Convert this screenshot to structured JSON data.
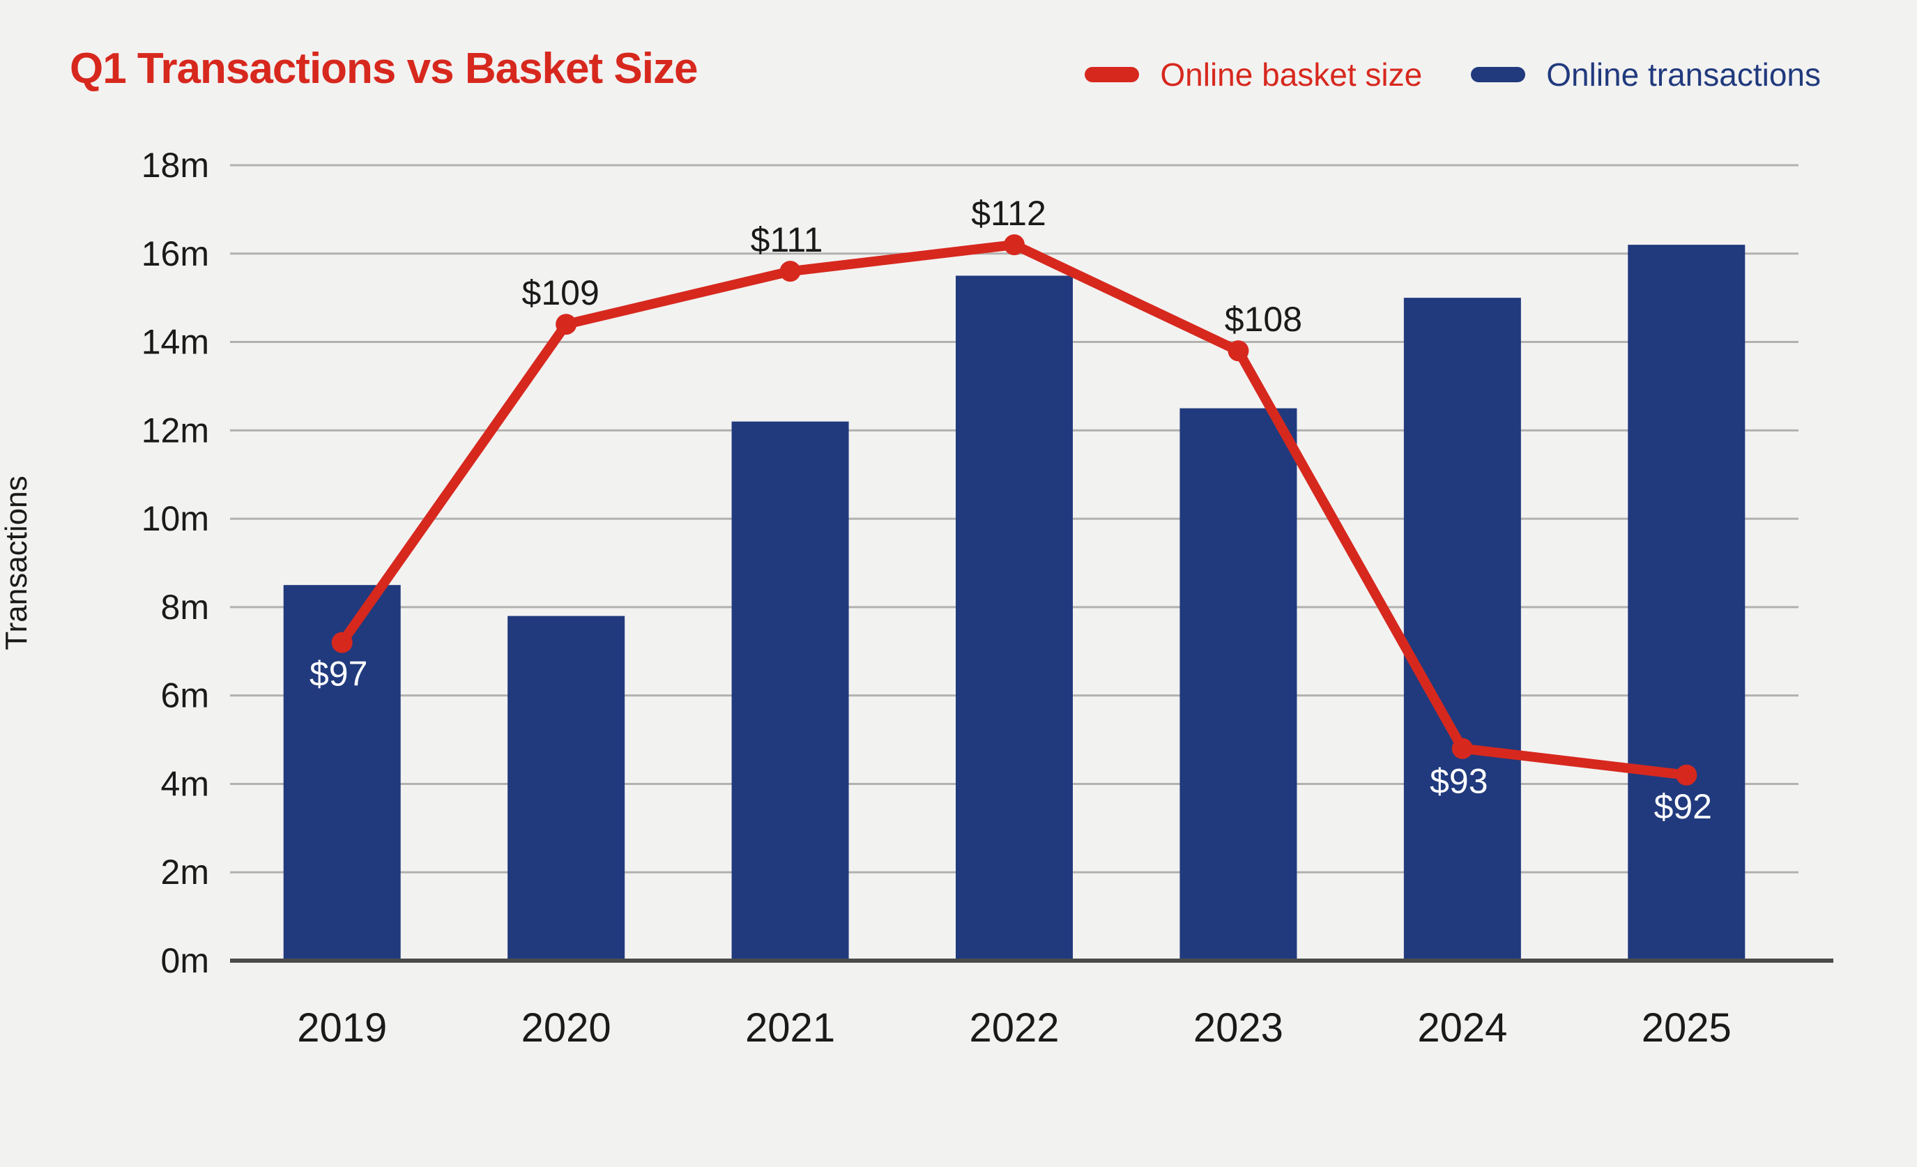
{
  "page": {
    "background_color": "#f2f2f1"
  },
  "header": {
    "title": "Q1 Transactions vs Basket Size",
    "title_color": "#d7281e"
  },
  "legend": {
    "position": "top-right",
    "items": [
      {
        "label": "Online basket size",
        "color": "#d7281e",
        "text_color": "#d7281e",
        "swatch": "line-pill"
      },
      {
        "label": "Online transactions",
        "color": "#213a7d",
        "text_color": "#213a7d",
        "swatch": "line-pill"
      }
    ]
  },
  "y_axis": {
    "title": "Transactions",
    "tick_labels": [
      "0m",
      "2m",
      "4m",
      "6m",
      "8m",
      "10m",
      "12m",
      "14m",
      "16m",
      "18m"
    ],
    "tick_values": [
      0,
      2,
      4,
      6,
      8,
      10,
      12,
      14,
      16,
      18
    ],
    "text_color": "#1a1a1a"
  },
  "x_axis": {
    "tick_labels": [
      "2019",
      "2020",
      "2021",
      "2022",
      "2023",
      "2024",
      "2025"
    ],
    "text_color": "#1a1a1a"
  },
  "chart_data": {
    "type": "bar+line",
    "title": "Q1 Transactions vs Basket Size",
    "categories": [
      "2019",
      "2020",
      "2021",
      "2022",
      "2023",
      "2024",
      "2025"
    ],
    "xlabel": "",
    "ylabel": "Transactions",
    "ylim_left": [
      0,
      18
    ],
    "ylim_right_hidden": [
      85,
      115
    ],
    "grid": "horizontal",
    "legend_position": "top-right",
    "grid_color": "#b3b1b0",
    "baseline_color": "#4b4b4b",
    "series": [
      {
        "name": "Online transactions",
        "type": "bar",
        "axis": "left",
        "unit": "millions of transactions",
        "color": "#213a7d",
        "values": [
          8.5,
          7.8,
          12.2,
          15.5,
          12.5,
          15.0,
          16.2
        ]
      },
      {
        "name": "Online basket size",
        "type": "line",
        "axis": "right-hidden",
        "unit": "USD",
        "color": "#d7281e",
        "values": [
          97,
          109,
          111,
          112,
          108,
          93,
          92
        ],
        "point_labels": [
          {
            "text": "$97",
            "dx": -5,
            "dy": 62,
            "color": "#ffffff"
          },
          {
            "text": "$109",
            "dx": -8,
            "dy": -28,
            "color": "#1a1a1a"
          },
          {
            "text": "$111",
            "dx": -5,
            "dy": -28,
            "color": "#1a1a1a"
          },
          {
            "text": "$112",
            "dx": -8,
            "dy": -28,
            "color": "#1a1a1a"
          },
          {
            "text": "$108",
            "dx": 36,
            "dy": -28,
            "color": "#1a1a1a"
          },
          {
            "text": "$93",
            "dx": -5,
            "dy": 64,
            "color": "#ffffff"
          },
          {
            "text": "$92",
            "dx": -5,
            "dy": 62,
            "color": "#ffffff"
          }
        ]
      }
    ]
  }
}
